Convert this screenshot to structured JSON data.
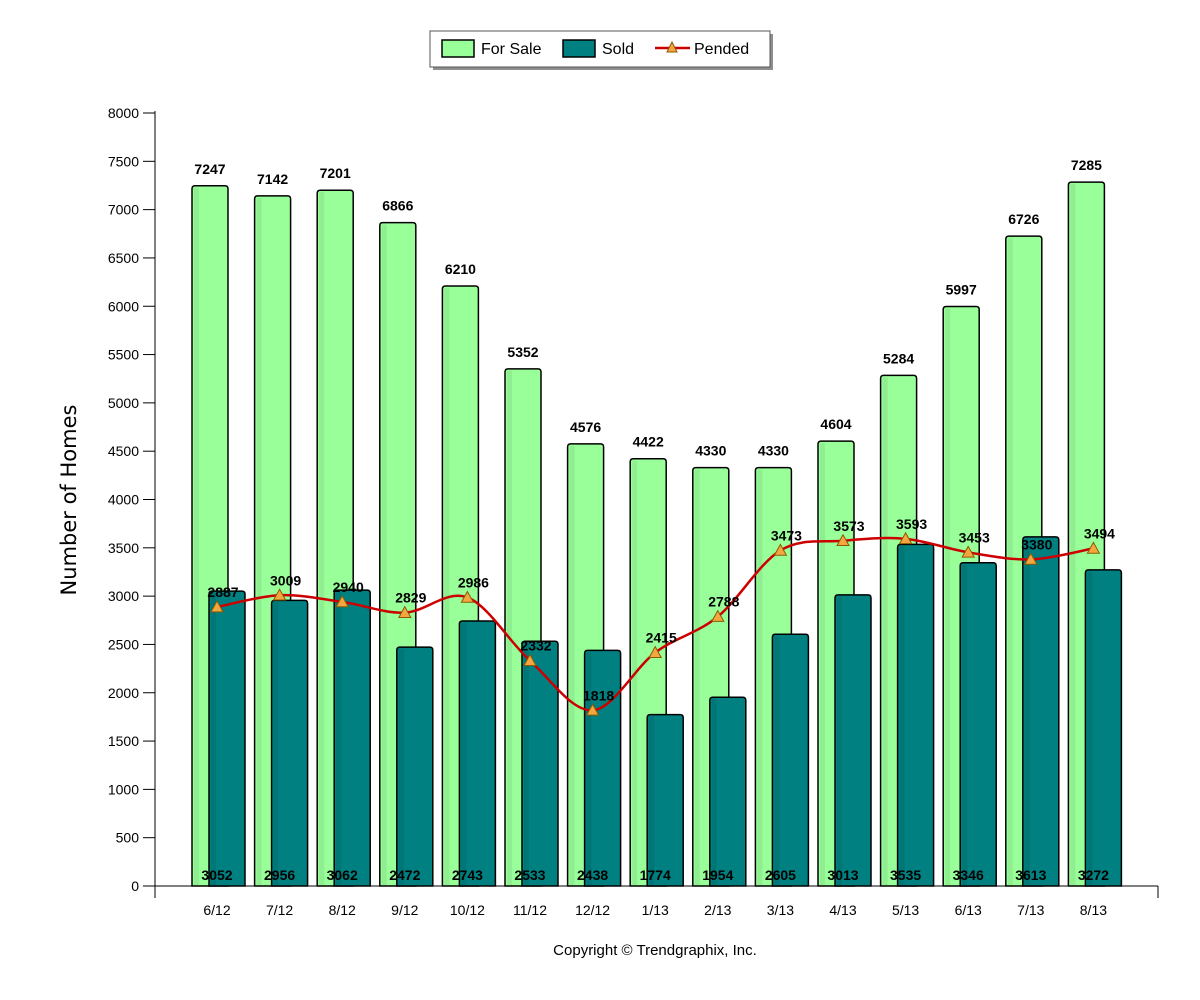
{
  "chart_data": {
    "type": "bar",
    "categories": [
      "6/12",
      "7/12",
      "8/12",
      "9/12",
      "10/12",
      "11/12",
      "12/12",
      "1/13",
      "2/13",
      "3/13",
      "4/13",
      "5/13",
      "6/13",
      "7/13",
      "8/13"
    ],
    "series": [
      {
        "name": "For Sale",
        "kind": "bar",
        "color": "#99ff99",
        "values": [
          7247,
          7142,
          7201,
          6866,
          6210,
          5352,
          4576,
          4422,
          4330,
          4330,
          4604,
          5284,
          5997,
          6726,
          7285
        ]
      },
      {
        "name": "Sold",
        "kind": "bar",
        "color": "#008080",
        "values": [
          3052,
          2956,
          3062,
          2472,
          2743,
          2533,
          2438,
          1774,
          1954,
          2605,
          3013,
          3535,
          3346,
          3613,
          3272
        ]
      },
      {
        "name": "Pended",
        "kind": "line",
        "color": "#cc0000",
        "marker_color": "#f4a640",
        "values": [
          2887,
          3009,
          2940,
          2829,
          2986,
          2332,
          1818,
          2415,
          2788,
          3473,
          3573,
          3593,
          3453,
          3380,
          3494
        ]
      }
    ],
    "ylabel": "Number of Homes",
    "ylim": [
      0,
      8000
    ],
    "yticks": [
      0,
      500,
      1000,
      1500,
      2000,
      2500,
      3000,
      3500,
      4000,
      4500,
      5000,
      5500,
      6000,
      6500,
      7000,
      7500,
      8000
    ],
    "legend": "top-center",
    "grid": false
  },
  "copyright": "Copyright © Trendgraphix, Inc."
}
